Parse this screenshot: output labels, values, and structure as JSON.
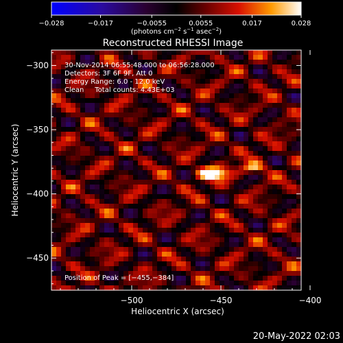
{
  "chart_data": {
    "type": "heatmap",
    "title": "Reconstructed RHESSI Image",
    "xlabel": "Heliocentric X (arcsec)",
    "ylabel": "Heliocentric Y (arcsec)",
    "xlim": [
      -545,
      -405
    ],
    "ylim": [
      -475,
      -288
    ],
    "x_ticks": [
      -500,
      -450,
      -400
    ],
    "x_tick_labels": [
      "−500",
      "−450",
      "−400"
    ],
    "y_ticks": [
      -300,
      -350,
      -400,
      -450
    ],
    "y_tick_labels": [
      "−300",
      "−350",
      "−400",
      "−450"
    ],
    "colorbar": {
      "range": [
        -0.028,
        0.028
      ],
      "ticks": [
        -0.028,
        -0.017,
        -0.0055,
        0.0055,
        0.017,
        0.028
      ],
      "tick_labels": [
        "−0.028",
        "−0.017",
        "−0.0055",
        "0.0055",
        "0.017",
        "0.028"
      ],
      "units_prefix": "(photons cm",
      "units_exp1": "−2",
      "units_mid": " s",
      "units_exp2": "−1",
      "units_mid2": " asec",
      "units_exp3": "−2",
      "units_suffix": ")"
    },
    "info_lines": [
      "30-Nov-2014 06:55:48.000 to 06:56:28.000",
      "Detectors: 3F 6F 9F, Att 0",
      "Energy Range: 6.0 - 12.0 keV",
      "Clean     Total counts: 4.43E+03"
    ],
    "peak_label": "Position of Peak = [−455,−384]",
    "peak": {
      "x": -455,
      "y": -384,
      "value": 0.028
    },
    "secondary_source": {
      "x": -432,
      "y": -380,
      "value": 0.018
    },
    "footer_timestamp": "20-May-2022 02:03"
  }
}
